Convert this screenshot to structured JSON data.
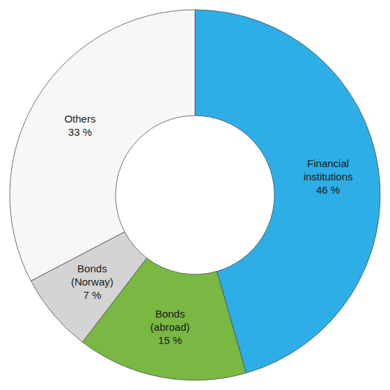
{
  "chart_data": {
    "type": "pie",
    "categories": [
      "Financial institutions",
      "Bonds (abroad)",
      "Bonds (Norway)",
      "Others"
    ],
    "values": [
      46,
      15,
      7,
      33
    ],
    "value_labels": [
      "46 %",
      "15 %",
      "7 %",
      "33 %"
    ],
    "colors": [
      "#2eaee6",
      "#78b843",
      "#d4d4d4",
      "#f7f7f7"
    ],
    "data_labels": true
  }
}
